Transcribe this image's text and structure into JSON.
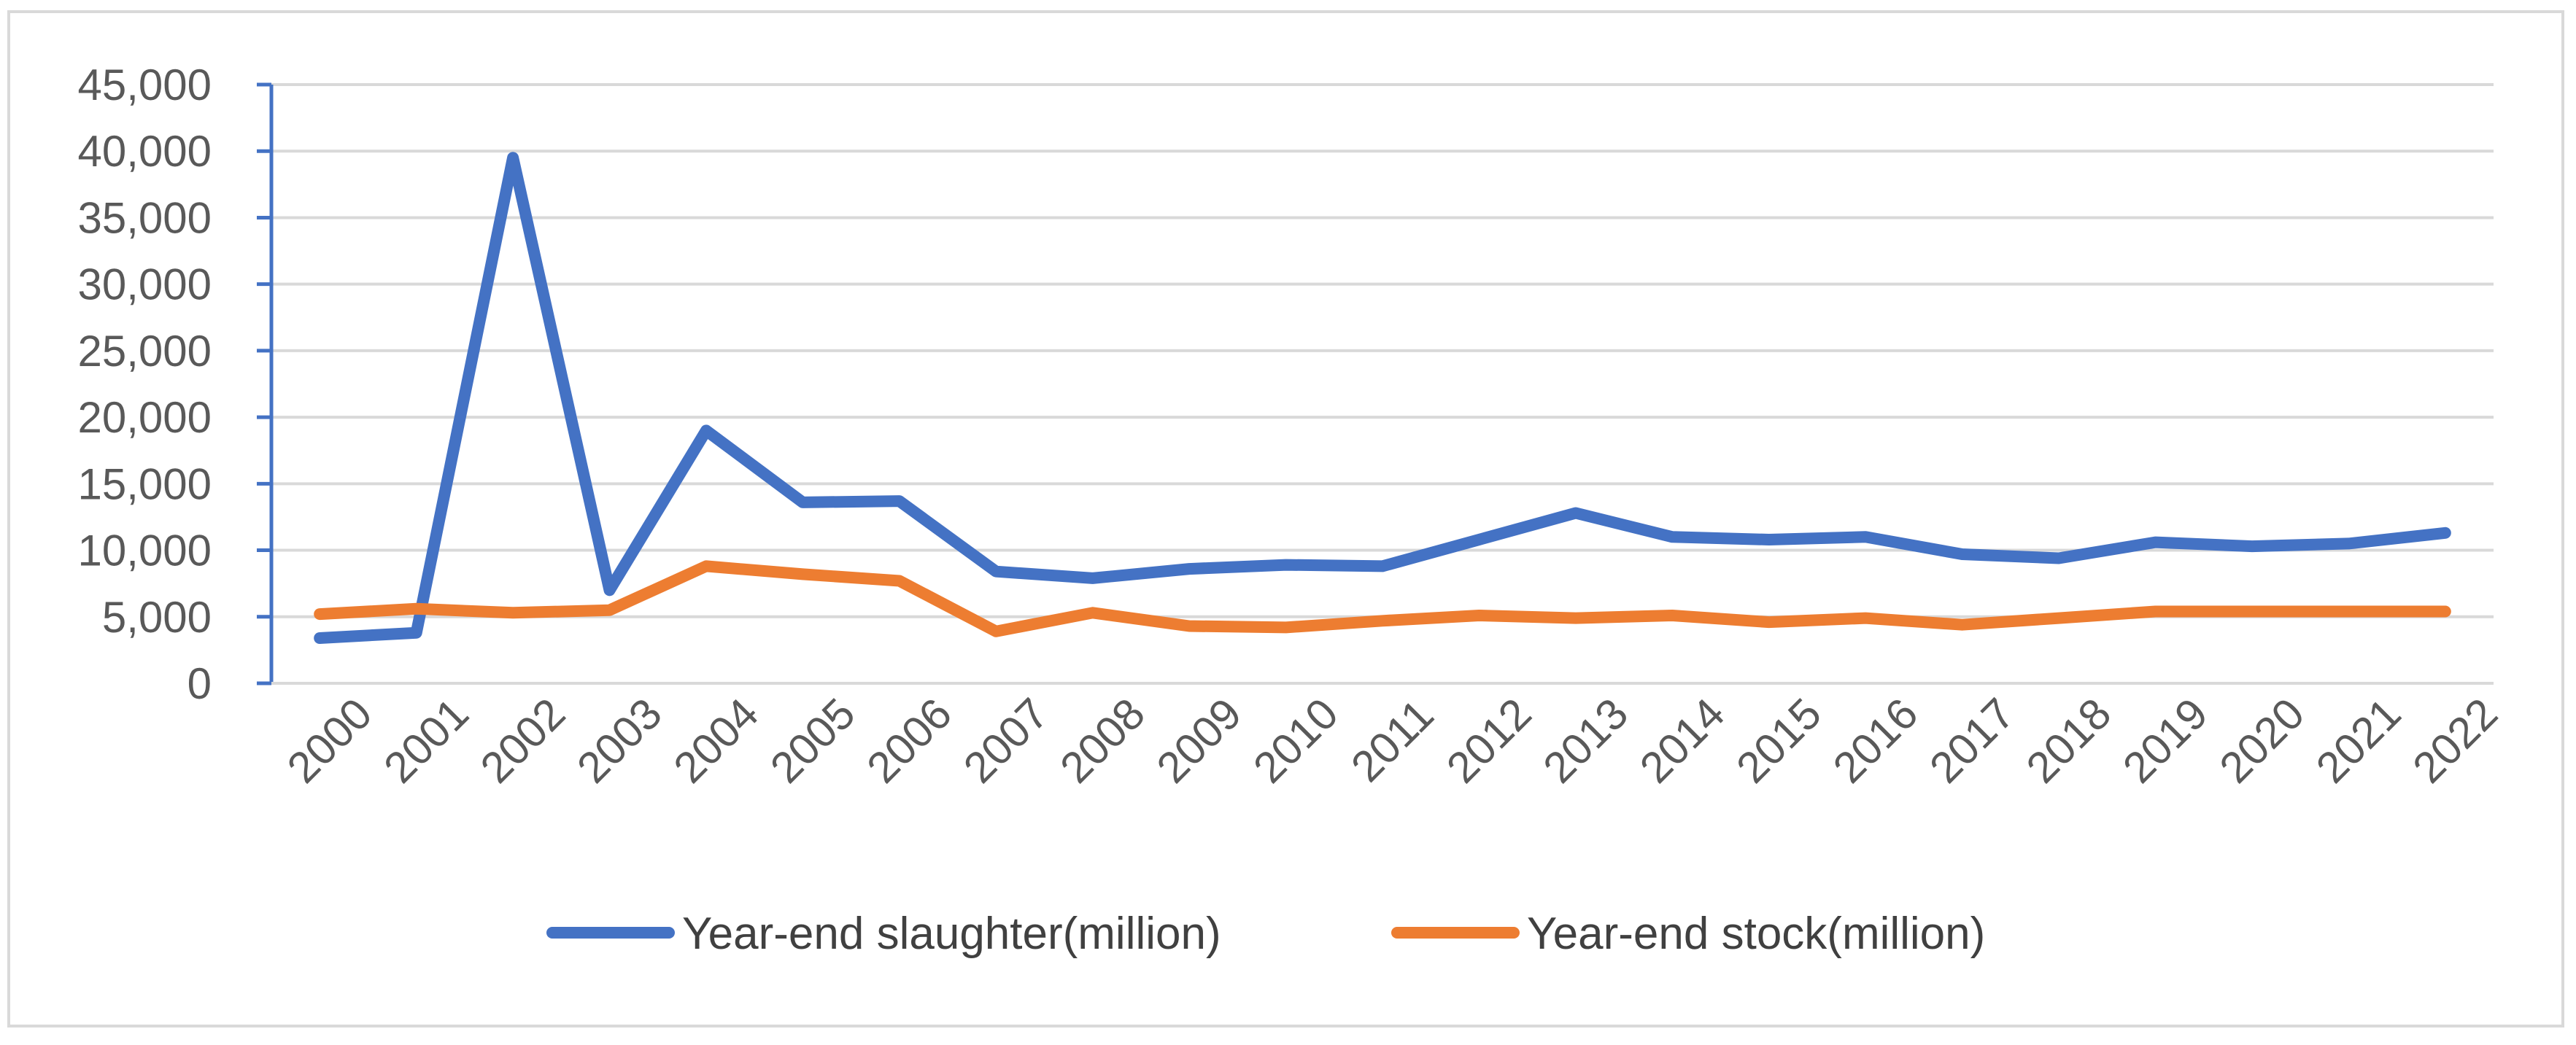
{
  "chart_data": {
    "type": "line",
    "title": "",
    "xlabel": "",
    "ylabel": "",
    "x": [
      "2000",
      "2001",
      "2002",
      "2003",
      "2004",
      "2005",
      "2006",
      "2007",
      "2008",
      "2009",
      "2010",
      "2011",
      "2012",
      "2013",
      "2014",
      "2015",
      "2016",
      "2017",
      "2018",
      "2019",
      "2020",
      "2021",
      "2022"
    ],
    "ylim": [
      0,
      45000
    ],
    "yticks": [
      0,
      5000,
      10000,
      15000,
      20000,
      25000,
      30000,
      35000,
      40000,
      45000
    ],
    "ytick_labels": [
      "0",
      "5,000",
      "10,000",
      "15,000",
      "20,000",
      "25,000",
      "30,000",
      "35,000",
      "40,000",
      "45,000"
    ],
    "grid": true,
    "legend_position": "bottom",
    "series": [
      {
        "name": "Year-end slaughter(million)",
        "color": "#4472C4",
        "values": [
          3400,
          3800,
          39500,
          7000,
          19000,
          13600,
          13700,
          8400,
          7900,
          8600,
          8900,
          8800,
          10800,
          12800,
          11000,
          10800,
          11000,
          9700,
          9400,
          10600,
          10300,
          10500,
          11300
        ]
      },
      {
        "name": "Year-end stock(million)",
        "color": "#ED7D31",
        "values": [
          5200,
          5600,
          5300,
          5500,
          8800,
          8200,
          7700,
          3900,
          5300,
          4300,
          4200,
          4700,
          5100,
          4900,
          5100,
          4600,
          4900,
          4400,
          4900,
          5400,
          5400,
          5400,
          5400
        ]
      }
    ]
  }
}
